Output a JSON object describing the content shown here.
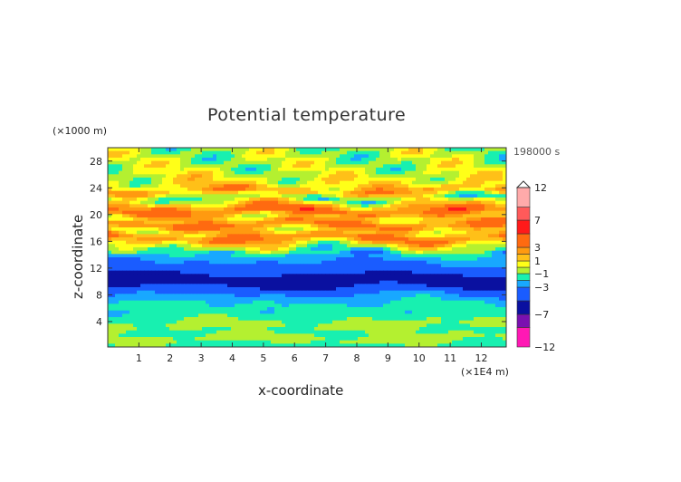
{
  "chart_data": {
    "type": "heatmap",
    "title": "Potential temperature",
    "xlabel": "x-coordinate",
    "ylabel": "z-coordinate",
    "x_unit": "(×1E4 m)",
    "y_unit": "(×1000 m)",
    "time_label": "198000 s",
    "xlim": [
      0,
      12.8
    ],
    "ylim": [
      0.2,
      30
    ],
    "xticks": [
      "1",
      "2",
      "3",
      "4",
      "5",
      "6",
      "7",
      "8",
      "9",
      "10",
      "11",
      "12"
    ],
    "yticks": [
      "4",
      "8",
      "12",
      "16",
      "20",
      "24",
      "28"
    ],
    "ytick_values": [
      4,
      8,
      12,
      16,
      20,
      24,
      28
    ],
    "levels": [
      -12,
      -9,
      -7,
      -5,
      -3,
      -2,
      -1,
      0,
      1,
      2,
      3,
      5,
      7,
      9,
      12
    ],
    "colorbar_labels": [
      "12",
      "7",
      "3",
      "1",
      "−1",
      "−3",
      "−7",
      "−12"
    ],
    "colorbar_label_values": [
      12,
      7,
      3,
      1,
      -1,
      -3,
      -7,
      -12
    ],
    "colors": [
      "#ff18b4",
      "#7a10b0",
      "#0a10a0",
      "#1a5cff",
      "#18a8ff",
      "#18f0b0",
      "#b4f030",
      "#ffff18",
      "#ffc018",
      "#ff9a10",
      "#ff6a10",
      "#ff1a1a",
      "#ff5a5a",
      "#ffaaaa"
    ],
    "vertical_profile": {
      "z": [
        0.2,
        1.5,
        2.5,
        3.5,
        5,
        6.5,
        7.5,
        8.5,
        9.5,
        10.5,
        11.5,
        12.5,
        13.5,
        14.5,
        15.5,
        16.5,
        17.5,
        18.5,
        19.5,
        20.5,
        21.5,
        22.5,
        23.5,
        24.5,
        25.5,
        26.5,
        28,
        30
      ],
      "value": [
        -1.5,
        -0.5,
        -1.2,
        -0.6,
        -1.5,
        -1.8,
        -2.5,
        -3.6,
        -5.6,
        -5.8,
        -4.5,
        -3.4,
        -2.5,
        -1.5,
        0.6,
        3.5,
        0.8,
        3.5,
        0.8,
        3.8,
        1.5,
        -1.2,
        2.5,
        0.6,
        0.3,
        -0.3,
        -0.4,
        -0.5
      ]
    }
  }
}
